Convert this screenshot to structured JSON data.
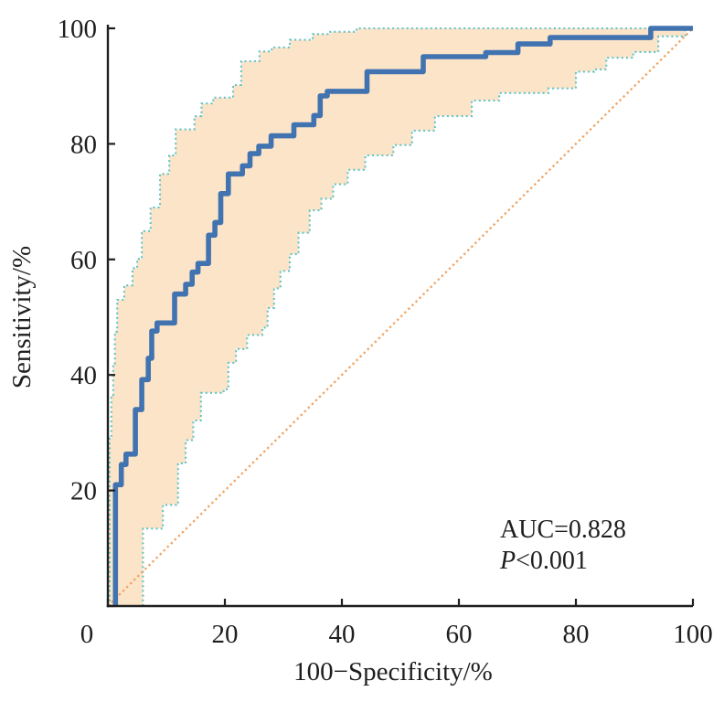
{
  "figure": {
    "background": "#ffffff",
    "annotation": {
      "auc_text": "AUC=0.828",
      "p_label": "P",
      "p_value": "<0.001"
    }
  },
  "chart_data": {
    "type": "line",
    "subtype": "roc-curve-with-confidence-band",
    "title": "",
    "xlabel": "100−Specificity/%",
    "ylabel": "Sensitivity/%",
    "xlim": [
      0,
      100
    ],
    "ylim": [
      0,
      100
    ],
    "xticks": [
      0,
      20,
      40,
      60,
      80,
      100
    ],
    "yticks": [
      0,
      20,
      40,
      60,
      80,
      100
    ],
    "grid": false,
    "legend": "none",
    "annotations": [
      "AUC=0.828",
      "P<0.001"
    ],
    "colors": {
      "roc": "#4173b0",
      "ci_line": "#5fc5c9",
      "band_fill": "#fce4c8",
      "diagonal": "#f0a25f",
      "axis": "#1f1f1f",
      "text": "#1f1f1f"
    },
    "series": [
      {
        "name": "roc-curve",
        "points": [
          [
            1.3,
            0
          ],
          [
            1.3,
            21
          ],
          [
            2.3,
            21
          ],
          [
            2.3,
            24.5
          ],
          [
            3.1,
            24.5
          ],
          [
            3.1,
            26.3
          ],
          [
            4.7,
            26.3
          ],
          [
            4.7,
            34
          ],
          [
            5.8,
            34
          ],
          [
            5.8,
            39.2
          ],
          [
            6.9,
            39.2
          ],
          [
            6.9,
            42.9
          ],
          [
            7.5,
            42.9
          ],
          [
            7.5,
            47.6
          ],
          [
            8.4,
            47.6
          ],
          [
            8.4,
            49
          ],
          [
            11.4,
            49
          ],
          [
            11.4,
            54
          ],
          [
            13.3,
            54
          ],
          [
            13.3,
            55.7
          ],
          [
            14.4,
            55.7
          ],
          [
            14.4,
            57.8
          ],
          [
            15.4,
            57.8
          ],
          [
            15.4,
            59.3
          ],
          [
            17.2,
            59.3
          ],
          [
            17.2,
            64.2
          ],
          [
            18.3,
            64.2
          ],
          [
            18.3,
            66.4
          ],
          [
            19.3,
            66.4
          ],
          [
            19.3,
            71.4
          ],
          [
            20.6,
            71.4
          ],
          [
            20.6,
            74.8
          ],
          [
            23,
            74.8
          ],
          [
            23,
            76.2
          ],
          [
            24.3,
            76.2
          ],
          [
            24.3,
            78.3
          ],
          [
            25.8,
            78.3
          ],
          [
            25.8,
            79.6
          ],
          [
            27.9,
            79.6
          ],
          [
            27.9,
            81.4
          ],
          [
            31.8,
            81.4
          ],
          [
            31.8,
            83.3
          ],
          [
            35.2,
            83.3
          ],
          [
            35.2,
            84.9
          ],
          [
            36.3,
            84.9
          ],
          [
            36.3,
            88.3
          ],
          [
            37.5,
            88.3
          ],
          [
            37.5,
            89.1
          ],
          [
            44.3,
            89.1
          ],
          [
            44.3,
            92.5
          ],
          [
            53.9,
            92.5
          ],
          [
            53.9,
            95.1
          ],
          [
            64.6,
            95.1
          ],
          [
            64.6,
            95.8
          ],
          [
            70.1,
            95.8
          ],
          [
            70.1,
            97.3
          ],
          [
            75.6,
            97.3
          ],
          [
            75.6,
            98.4
          ],
          [
            92.8,
            98.4
          ],
          [
            92.8,
            100
          ],
          [
            100,
            100
          ]
        ]
      },
      {
        "name": "ci-upper",
        "points": [
          [
            0.3,
            0
          ],
          [
            0.3,
            29
          ],
          [
            0.6,
            29
          ],
          [
            0.6,
            36.5
          ],
          [
            0.9,
            36.5
          ],
          [
            0.9,
            42
          ],
          [
            1.2,
            42
          ],
          [
            1.2,
            47.5
          ],
          [
            1.6,
            47.5
          ],
          [
            1.6,
            53
          ],
          [
            2.8,
            53
          ],
          [
            2.8,
            55.5
          ],
          [
            4.2,
            55.5
          ],
          [
            4.2,
            58.5
          ],
          [
            5,
            58.5
          ],
          [
            5,
            60.1
          ],
          [
            5.8,
            60.1
          ],
          [
            5.8,
            64.9
          ],
          [
            7.3,
            64.9
          ],
          [
            7.3,
            69
          ],
          [
            8.9,
            69
          ],
          [
            8.9,
            74.8
          ],
          [
            10.5,
            74.8
          ],
          [
            10.5,
            78
          ],
          [
            11.6,
            78
          ],
          [
            11.6,
            82.5
          ],
          [
            14.8,
            82.5
          ],
          [
            14.8,
            84.8
          ],
          [
            16,
            84.8
          ],
          [
            16,
            87
          ],
          [
            18,
            87
          ],
          [
            18,
            88
          ],
          [
            21.4,
            88
          ],
          [
            21.4,
            90.2
          ],
          [
            22.8,
            90.2
          ],
          [
            22.8,
            94.3
          ],
          [
            25.9,
            94.3
          ],
          [
            25.9,
            96
          ],
          [
            28,
            96
          ],
          [
            28,
            96.7
          ],
          [
            31.1,
            96.7
          ],
          [
            31.1,
            98
          ],
          [
            35,
            98
          ],
          [
            35,
            99
          ],
          [
            38,
            99
          ],
          [
            38,
            99.4
          ],
          [
            42.5,
            99.4
          ],
          [
            42.5,
            100
          ],
          [
            100,
            100
          ]
        ]
      },
      {
        "name": "ci-lower",
        "points": [
          [
            6,
            0
          ],
          [
            6,
            13.4
          ],
          [
            9.4,
            13.4
          ],
          [
            9.4,
            17.5
          ],
          [
            12,
            17.5
          ],
          [
            12,
            24.7
          ],
          [
            13.3,
            24.7
          ],
          [
            13.3,
            28.7
          ],
          [
            14.6,
            28.7
          ],
          [
            14.6,
            32.1
          ],
          [
            15.9,
            32.1
          ],
          [
            15.9,
            36.9
          ],
          [
            19.8,
            36.9
          ],
          [
            19.8,
            37.5
          ],
          [
            20.6,
            37.5
          ],
          [
            20.6,
            42.1
          ],
          [
            21.9,
            42.1
          ],
          [
            21.9,
            44.5
          ],
          [
            23.8,
            44.5
          ],
          [
            23.8,
            46.9
          ],
          [
            26.4,
            46.9
          ],
          [
            26.4,
            48.2
          ],
          [
            27.3,
            48.2
          ],
          [
            27.3,
            51.6
          ],
          [
            28.4,
            51.6
          ],
          [
            28.4,
            55
          ],
          [
            29.5,
            55
          ],
          [
            29.5,
            58
          ],
          [
            31.1,
            58
          ],
          [
            31.1,
            60.9
          ],
          [
            32.6,
            60.9
          ],
          [
            32.6,
            64.6
          ],
          [
            34.5,
            64.6
          ],
          [
            34.5,
            68.5
          ],
          [
            36.5,
            68.5
          ],
          [
            36.5,
            70.5
          ],
          [
            38.5,
            70.5
          ],
          [
            38.5,
            73
          ],
          [
            41,
            73
          ],
          [
            41,
            75.5
          ],
          [
            44,
            75.5
          ],
          [
            44,
            78
          ],
          [
            48.8,
            78
          ],
          [
            48.8,
            79.8
          ],
          [
            52,
            79.8
          ],
          [
            52,
            82.3
          ],
          [
            55.9,
            82.3
          ],
          [
            55.9,
            84.8
          ],
          [
            62.2,
            84.8
          ],
          [
            62.2,
            87.5
          ],
          [
            66.9,
            87.5
          ],
          [
            66.9,
            88.8
          ],
          [
            75.3,
            88.8
          ],
          [
            75.3,
            89.6
          ],
          [
            80,
            89.6
          ],
          [
            80,
            92.5
          ],
          [
            83.1,
            92.5
          ],
          [
            83.1,
            92.9
          ],
          [
            85.2,
            92.9
          ],
          [
            85.2,
            94.9
          ],
          [
            89.8,
            94.9
          ],
          [
            89.8,
            95.9
          ],
          [
            94.1,
            95.9
          ],
          [
            94.1,
            98.6
          ],
          [
            98.7,
            98.6
          ],
          [
            98.7,
            100
          ],
          [
            100,
            100
          ]
        ]
      },
      {
        "name": "reference-diagonal",
        "points": [
          [
            0,
            0
          ],
          [
            100,
            100
          ]
        ]
      }
    ]
  }
}
